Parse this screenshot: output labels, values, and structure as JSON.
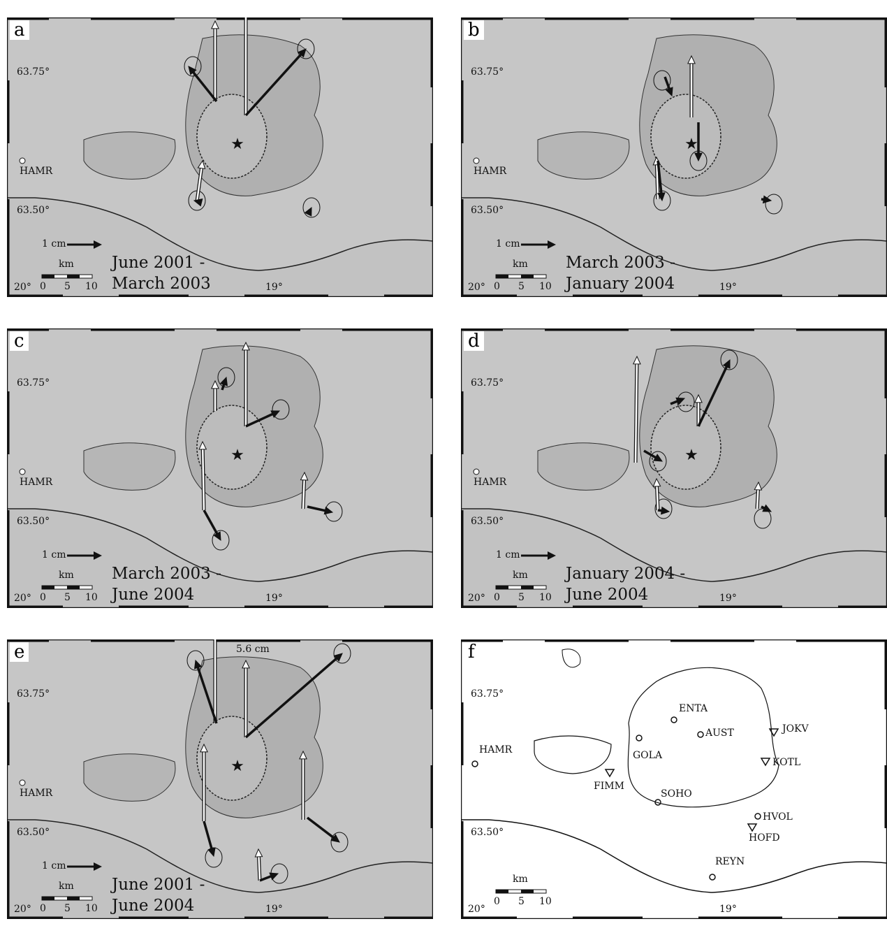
{
  "panels": [
    {
      "label": "a",
      "period_line1": "June 2001 -",
      "period_line2": "March 2003"
    },
    {
      "label": "b",
      "period_line1": "March 2003 -",
      "period_line2": "January 2004"
    },
    {
      "label": "c",
      "period_line1": "March 2003 -",
      "period_line2": "June 2004"
    },
    {
      "label": "d",
      "period_line1": "January 2004 -",
      "period_line2": "June 2004"
    },
    {
      "label": "e",
      "period_line1": "June 2001 -",
      "period_line2": "June 2004"
    },
    {
      "label": "f"
    }
  ],
  "coords": {
    "lat_north": "63.75°",
    "lat_south": "63.50°",
    "lon_west": "20°",
    "lon_east": "19°"
  },
  "scale": {
    "unit": "km",
    "ticks": [
      "0",
      "5",
      "10"
    ]
  },
  "reference_arrow": "1 cm",
  "big_arrow_label": "5.6 cm",
  "stations": {
    "hamr": "HAMR",
    "enta": "ENTA",
    "aust": "AUST",
    "jokv": "JOKV",
    "gola": "GOLA",
    "kotl": "KOTL",
    "fimm": "FIMM",
    "soho": "SOHO",
    "hvol": "HVOL",
    "hofd": "HOFD",
    "reyn": "REYN"
  }
}
